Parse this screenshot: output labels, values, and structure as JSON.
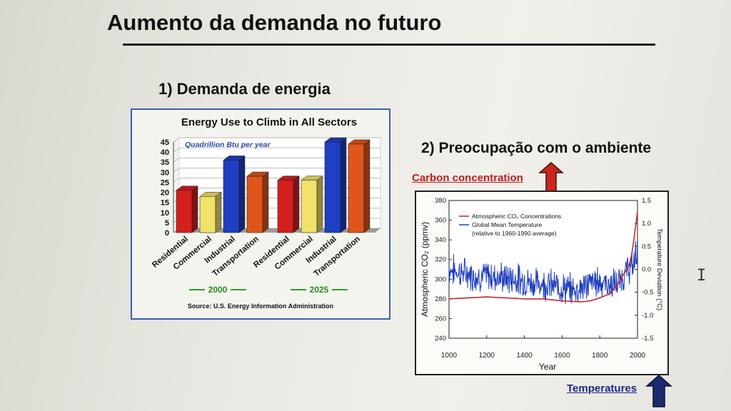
{
  "slide": {
    "title": "Aumento da demanda no futuro",
    "section1": "1) Demanda de energia",
    "section2": "2) Preocupação com o ambiente",
    "carbon_label": "Carbon concentration",
    "temperature_label": "Temperatures",
    "colors": {
      "arrow_up": "#c8261c",
      "arrow_down": "#1c2a6e",
      "carbon_text": "#c41b1b",
      "temp_text": "#1c2a8a"
    }
  },
  "chart_data": [
    {
      "type": "bar",
      "title": "Energy Use to Climb in All Sectors",
      "unit_label": "Quadrillion Btu per year",
      "source": "Source: U.S. Energy Information Administration",
      "categories": [
        "Residential",
        "Commercial",
        "Industrial",
        "Transportation"
      ],
      "groups": [
        {
          "name": "2000",
          "values": [
            21,
            18,
            36,
            28
          ]
        },
        {
          "name": "2025",
          "values": [
            26,
            26,
            45,
            44
          ]
        }
      ],
      "colors": [
        "#d41f1f",
        "#f0e26a",
        "#1f3fc4",
        "#e0561a"
      ],
      "ylim": [
        0,
        45
      ],
      "yticks": [
        0,
        5,
        10,
        15,
        20,
        25,
        30,
        35,
        40,
        45
      ],
      "grid": true
    },
    {
      "type": "line",
      "xlabel": "Year",
      "ylabel": "Atmospheric CO₂ (ppmv)",
      "ylabel_right": "Temperature Deviation (°C)",
      "xlim": [
        1000,
        2000
      ],
      "xticks": [
        1000,
        1200,
        1400,
        1600,
        1800,
        2000
      ],
      "ylim": [
        240,
        380
      ],
      "yticks": [
        240,
        260,
        280,
        300,
        320,
        340,
        360,
        380
      ],
      "ylim_right": [
        -1.5,
        1.5
      ],
      "yticks_right": [
        "1.5",
        "1.0",
        "0.5",
        "0.0",
        "-0.5",
        "-1.0",
        "-1.5"
      ],
      "legend": {
        "co2": "Atmospheric CO₂ Concentrations",
        "temp": "Global Mean Temperature",
        "temp_note": "(relative to 1960-1990 average)"
      },
      "series": [
        {
          "name": "Atmospheric CO₂ Concentrations",
          "color": "#c0282a",
          "x": [
            1000,
            1100,
            1200,
            1300,
            1400,
            1500,
            1600,
            1700,
            1750,
            1800,
            1850,
            1900,
            1925,
            1950,
            1960,
            1970,
            1980,
            1990,
            2000
          ],
          "y": [
            280,
            281,
            282,
            281,
            280,
            280,
            278,
            277,
            278,
            281,
            285,
            296,
            305,
            311,
            317,
            326,
            339,
            354,
            369
          ]
        },
        {
          "name": "Global Mean Temperature",
          "color": "#1f3fbf",
          "x": [
            1000,
            1050,
            1100,
            1150,
            1200,
            1250,
            1300,
            1350,
            1400,
            1450,
            1500,
            1550,
            1600,
            1650,
            1700,
            1750,
            1800,
            1850,
            1900,
            1925,
            1950,
            1975,
            2000
          ],
          "y": [
            0.0,
            -0.05,
            -0.1,
            -0.15,
            -0.15,
            -0.15,
            -0.2,
            -0.2,
            -0.25,
            -0.3,
            -0.3,
            -0.35,
            -0.4,
            -0.45,
            -0.4,
            -0.3,
            -0.25,
            -0.35,
            -0.3,
            -0.15,
            0.0,
            0.05,
            0.5
          ]
        }
      ]
    }
  ]
}
